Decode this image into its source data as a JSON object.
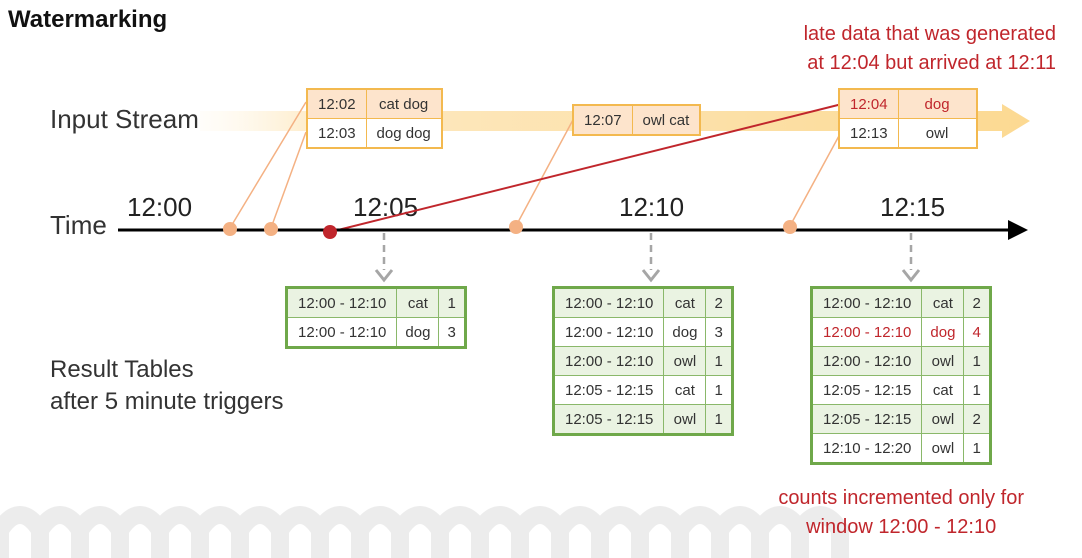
{
  "title": "Watermarking",
  "input_stream_label": "Input Stream",
  "time_label": "Time",
  "result_label_line1": "Result Tables",
  "result_label_line2": "after 5 minute triggers",
  "late_note_line1": "late data that was generated",
  "late_note_line2": "at 12:04 but arrived at 12:11",
  "counts_note_line1": "counts incremented only for",
  "counts_note_line2": "window 12:00 - 12:10",
  "ticks": [
    "12:00",
    "12:05",
    "12:10",
    "12:15"
  ],
  "events": [
    {
      "rows": [
        {
          "time": "12:02",
          "words": "cat dog",
          "highlight": true
        },
        {
          "time": "12:03",
          "words": "dog dog",
          "highlight": false
        }
      ]
    },
    {
      "rows": [
        {
          "time": "12:07",
          "words": "owl cat",
          "highlight": true
        }
      ]
    },
    {
      "rows": [
        {
          "time": "12:04",
          "words": "dog",
          "highlight": true,
          "late": true
        },
        {
          "time": "12:13",
          "words": "owl",
          "highlight": false
        }
      ]
    }
  ],
  "results": [
    {
      "rows": [
        {
          "window": "12:00 - 12:10",
          "word": "cat",
          "count": "1"
        },
        {
          "window": "12:00 - 12:10",
          "word": "dog",
          "count": "3"
        }
      ]
    },
    {
      "rows": [
        {
          "window": "12:00 - 12:10",
          "word": "cat",
          "count": "2"
        },
        {
          "window": "12:00 - 12:10",
          "word": "dog",
          "count": "3"
        },
        {
          "window": "12:00 - 12:10",
          "word": "owl",
          "count": "1"
        },
        {
          "window": "12:05 - 12:15",
          "word": "cat",
          "count": "1"
        },
        {
          "window": "12:05 - 12:15",
          "word": "owl",
          "count": "1"
        }
      ]
    },
    {
      "rows": [
        {
          "window": "12:00 - 12:10",
          "word": "cat",
          "count": "2"
        },
        {
          "window": "12:00 - 12:10",
          "word": "dog",
          "count": "4",
          "updated": true
        },
        {
          "window": "12:00 - 12:10",
          "word": "owl",
          "count": "1"
        },
        {
          "window": "12:05 - 12:15",
          "word": "cat",
          "count": "1"
        },
        {
          "window": "12:05 - 12:15",
          "word": "owl",
          "count": "2"
        },
        {
          "window": "12:10 - 12:20",
          "word": "owl",
          "count": "1"
        }
      ]
    }
  ],
  "colors": {
    "late": "#c0262c",
    "event_border": "#f3b94f",
    "result_border": "#6fa84a",
    "dot": "#f4b183"
  }
}
